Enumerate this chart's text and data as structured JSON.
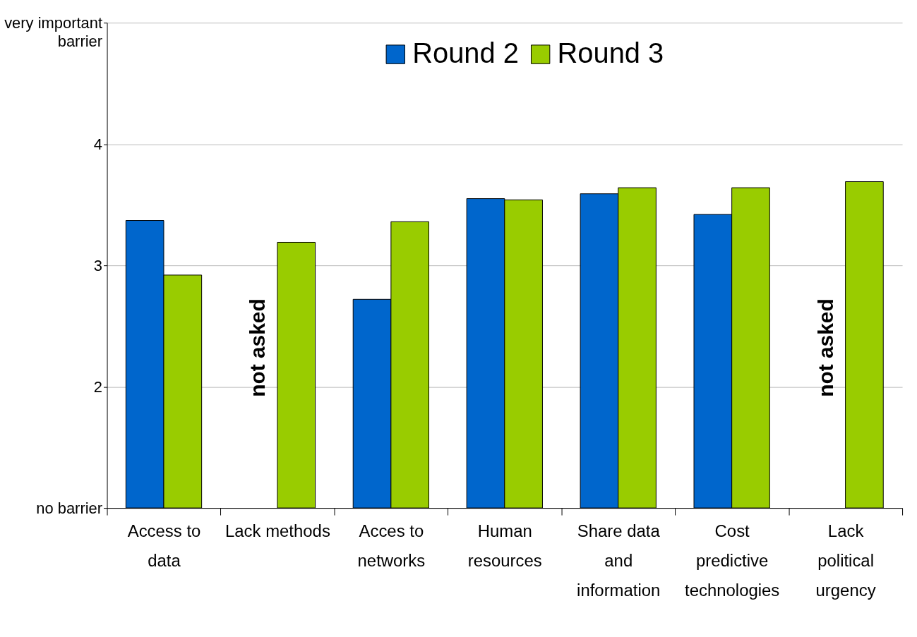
{
  "chart_data": {
    "type": "bar",
    "categories": [
      "Access to data",
      "Lack methods",
      "Acces to networks",
      "Human resources",
      "Share data and information",
      "Cost predictive technologies",
      "Lack political urgency"
    ],
    "series": [
      {
        "name": "Round 2",
        "color": "#0066cc",
        "values": [
          3.37,
          null,
          2.72,
          3.55,
          3.59,
          3.42,
          null
        ]
      },
      {
        "name": "Round 3",
        "color": "#99cc00",
        "values": [
          2.92,
          3.19,
          3.36,
          3.54,
          3.64,
          3.64,
          3.69
        ]
      }
    ],
    "ylim": [
      1,
      5
    ],
    "yticks": [
      {
        "value": 1,
        "label": "no barrier"
      },
      2,
      3,
      4,
      {
        "value": 5,
        "label": "very important barrier"
      }
    ],
    "annotations": [
      "not asked",
      "not asked"
    ],
    "grid": "y",
    "legend": "top"
  }
}
